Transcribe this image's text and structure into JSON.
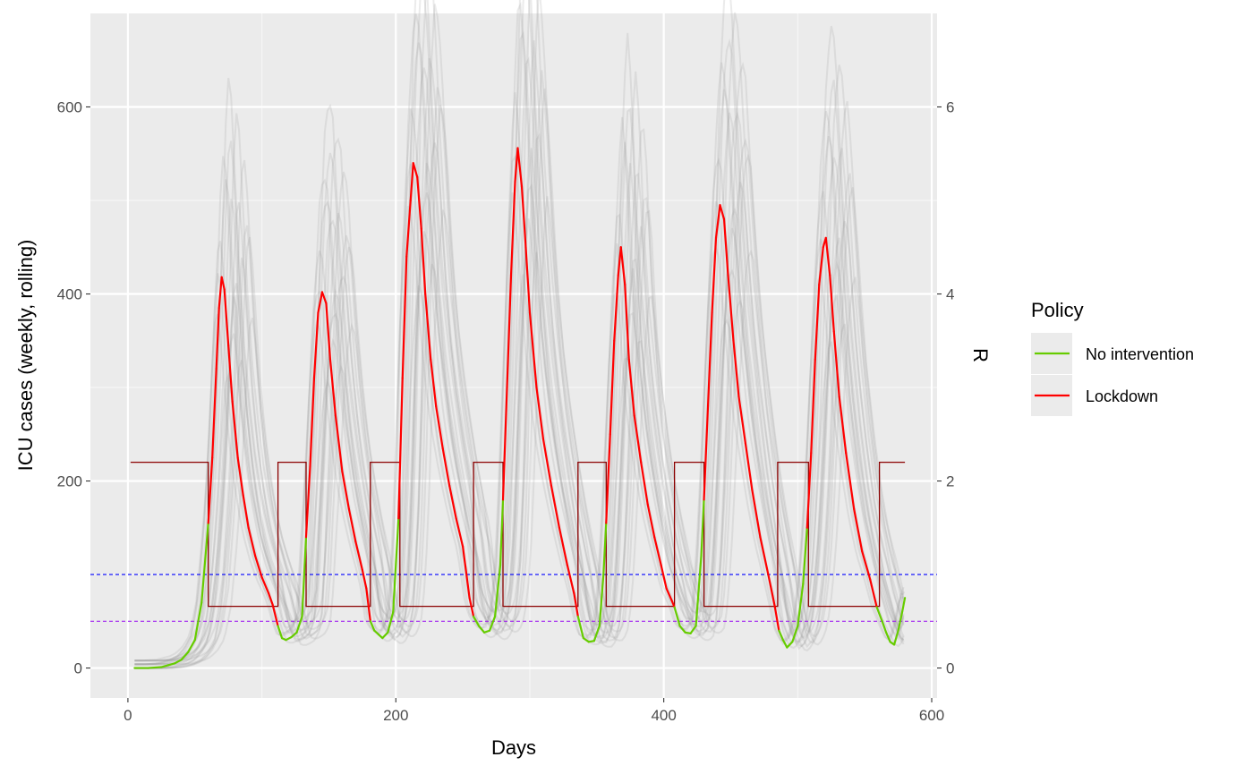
{
  "chart_data": {
    "type": "line",
    "xlabel": "Days",
    "ylabel": "ICU cases (weekly, rolling)",
    "y2label": "R",
    "xlim": [
      -28,
      604
    ],
    "ylim": [
      -32,
      700
    ],
    "y2lim": [
      -0.32,
      7.0
    ],
    "x_ticks": [
      0,
      200,
      400,
      600
    ],
    "x_tick_labels": [
      "0",
      "200",
      "400",
      "600"
    ],
    "x_minor_ticks": [
      100,
      300,
      500
    ],
    "y_ticks": [
      0,
      200,
      400,
      600
    ],
    "y_tick_labels": [
      "0",
      "200",
      "400",
      "600"
    ],
    "y_minor_ticks": [
      100,
      300,
      500
    ],
    "y2_ticks": [
      0,
      2,
      4,
      6
    ],
    "y2_tick_labels": [
      "0",
      "2",
      "4",
      "6"
    ],
    "grid": true,
    "background": "#ebebeb",
    "legend": {
      "title": "Policy",
      "position": "right",
      "entries": [
        {
          "label": "No intervention",
          "color": "#66cc00"
        },
        {
          "label": "Lockdown",
          "color": "#ff0000"
        }
      ]
    },
    "reference_lines": [
      {
        "axis": "R",
        "value": 1.0,
        "color": "#0000ff",
        "style": "dashed"
      },
      {
        "axis": "R",
        "value": 0.5,
        "color": "#a020f0",
        "style": "dashed"
      }
    ],
    "r_series": {
      "color": "#8b0000",
      "style": "step",
      "points": [
        [
          2,
          2.2
        ],
        [
          60,
          2.2
        ],
        [
          60,
          0.66
        ],
        [
          112,
          0.66
        ],
        [
          112,
          2.2
        ],
        [
          133,
          2.2
        ],
        [
          133,
          0.66
        ],
        [
          181,
          0.66
        ],
        [
          181,
          2.2
        ],
        [
          203,
          2.2
        ],
        [
          203,
          0.66
        ],
        [
          258,
          0.66
        ],
        [
          258,
          2.2
        ],
        [
          280,
          2.2
        ],
        [
          280,
          0.66
        ],
        [
          336,
          0.66
        ],
        [
          336,
          2.2
        ],
        [
          357,
          2.2
        ],
        [
          357,
          0.66
        ],
        [
          408,
          0.66
        ],
        [
          408,
          2.2
        ],
        [
          430,
          2.2
        ],
        [
          430,
          0.66
        ],
        [
          485,
          0.66
        ],
        [
          485,
          2.2
        ],
        [
          508,
          2.2
        ],
        [
          508,
          0.66
        ],
        [
          561,
          0.66
        ],
        [
          561,
          2.2
        ],
        [
          580,
          2.2
        ]
      ]
    },
    "icu_series": {
      "points": [
        [
          5,
          0
        ],
        [
          15,
          0
        ],
        [
          25,
          1
        ],
        [
          30,
          3
        ],
        [
          35,
          5
        ],
        [
          40,
          9
        ],
        [
          45,
          17
        ],
        [
          50,
          30
        ],
        [
          55,
          70
        ],
        [
          60,
          155
        ],
        [
          63,
          225
        ],
        [
          66,
          320
        ],
        [
          68,
          385
        ],
        [
          70,
          418
        ],
        [
          72,
          405
        ],
        [
          75,
          345
        ],
        [
          78,
          285
        ],
        [
          82,
          225
        ],
        [
          86,
          185
        ],
        [
          90,
          150
        ],
        [
          95,
          120
        ],
        [
          100,
          97
        ],
        [
          105,
          80
        ],
        [
          108,
          68
        ],
        [
          112,
          45
        ],
        [
          115,
          32
        ],
        [
          118,
          30
        ],
        [
          122,
          33
        ],
        [
          126,
          38
        ],
        [
          130,
          55
        ],
        [
          133,
          140
        ],
        [
          136,
          215
        ],
        [
          139,
          310
        ],
        [
          142,
          380
        ],
        [
          145,
          402
        ],
        [
          148,
          390
        ],
        [
          151,
          330
        ],
        [
          155,
          270
        ],
        [
          160,
          210
        ],
        [
          165,
          170
        ],
        [
          170,
          135
        ],
        [
          175,
          105
        ],
        [
          178,
          85
        ],
        [
          181,
          50
        ],
        [
          184,
          40
        ],
        [
          187,
          36
        ],
        [
          190,
          32
        ],
        [
          194,
          38
        ],
        [
          198,
          60
        ],
        [
          202,
          160
        ],
        [
          205,
          310
        ],
        [
          208,
          440
        ],
        [
          211,
          500
        ],
        [
          213,
          540
        ],
        [
          216,
          525
        ],
        [
          219,
          470
        ],
        [
          222,
          400
        ],
        [
          226,
          330
        ],
        [
          230,
          280
        ],
        [
          235,
          235
        ],
        [
          240,
          195
        ],
        [
          245,
          160
        ],
        [
          250,
          130
        ],
        [
          255,
          75
        ],
        [
          258,
          55
        ],
        [
          262,
          45
        ],
        [
          266,
          38
        ],
        [
          270,
          40
        ],
        [
          274,
          55
        ],
        [
          278,
          110
        ],
        [
          280,
          180
        ],
        [
          283,
          300
        ],
        [
          286,
          420
        ],
        [
          289,
          520
        ],
        [
          291,
          556
        ],
        [
          294,
          515
        ],
        [
          297,
          450
        ],
        [
          300,
          380
        ],
        [
          305,
          300
        ],
        [
          310,
          245
        ],
        [
          316,
          195
        ],
        [
          322,
          150
        ],
        [
          328,
          110
        ],
        [
          333,
          80
        ],
        [
          336,
          55
        ],
        [
          340,
          32
        ],
        [
          344,
          28
        ],
        [
          348,
          29
        ],
        [
          352,
          45
        ],
        [
          355,
          100
        ],
        [
          357,
          155
        ],
        [
          360,
          250
        ],
        [
          363,
          350
        ],
        [
          366,
          420
        ],
        [
          368,
          450
        ],
        [
          371,
          410
        ],
        [
          374,
          330
        ],
        [
          378,
          270
        ],
        [
          383,
          220
        ],
        [
          388,
          175
        ],
        [
          393,
          140
        ],
        [
          398,
          110
        ],
        [
          402,
          85
        ],
        [
          406,
          72
        ],
        [
          408,
          65
        ],
        [
          412,
          45
        ],
        [
          416,
          38
        ],
        [
          420,
          37
        ],
        [
          424,
          45
        ],
        [
          428,
          120
        ],
        [
          430,
          180
        ],
        [
          433,
          280
        ],
        [
          436,
          380
        ],
        [
          439,
          460
        ],
        [
          442,
          495
        ],
        [
          445,
          480
        ],
        [
          448,
          420
        ],
        [
          452,
          350
        ],
        [
          456,
          290
        ],
        [
          461,
          240
        ],
        [
          466,
          190
        ],
        [
          472,
          140
        ],
        [
          478,
          100
        ],
        [
          483,
          65
        ],
        [
          486,
          40
        ],
        [
          489,
          30
        ],
        [
          492,
          22
        ],
        [
          496,
          28
        ],
        [
          500,
          45
        ],
        [
          504,
          90
        ],
        [
          507,
          150
        ],
        [
          510,
          230
        ],
        [
          513,
          330
        ],
        [
          516,
          410
        ],
        [
          519,
          450
        ],
        [
          521,
          460
        ],
        [
          524,
          420
        ],
        [
          527,
          360
        ],
        [
          531,
          290
        ],
        [
          536,
          230
        ],
        [
          542,
          170
        ],
        [
          548,
          125
        ],
        [
          554,
          95
        ],
        [
          559,
          65
        ],
        [
          563,
          50
        ],
        [
          566,
          38
        ],
        [
          569,
          28
        ],
        [
          572,
          25
        ],
        [
          575,
          40
        ],
        [
          578,
          60
        ],
        [
          580,
          75
        ]
      ]
    }
  }
}
